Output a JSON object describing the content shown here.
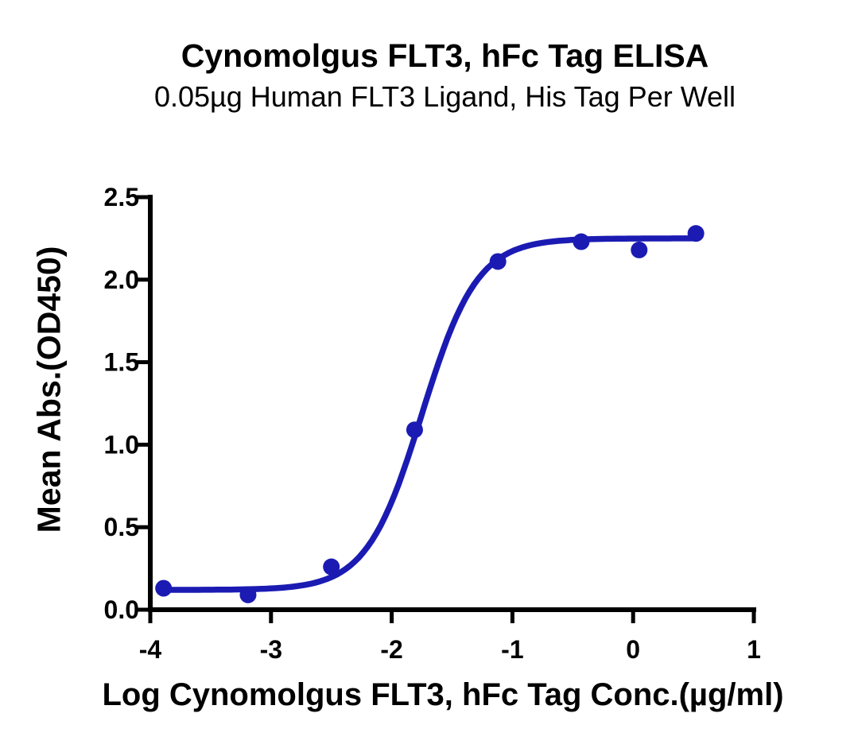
{
  "chart_data": {
    "type": "scatter",
    "title": "Cynomolgus FLT3, hFc Tag ELISA",
    "subtitle": "0.05µg Human FLT3 Ligand, His Tag Per Well",
    "xlabel": "Log Cynomolgus FLT3, hFc Tag Conc.(µg/ml)",
    "ylabel": "Mean Abs.(OD450)",
    "xlim": [
      -4,
      1
    ],
    "ylim": [
      0,
      2.5
    ],
    "x_ticks": [
      -4,
      -3,
      -2,
      -1,
      0,
      1
    ],
    "x_tick_labels": [
      "-4",
      "-3",
      "-2",
      "-1",
      "0",
      "1"
    ],
    "y_ticks": [
      0,
      0.5,
      1,
      1.5,
      2,
      2.5
    ],
    "y_tick_labels": [
      "0.0",
      "0.5",
      "1.0",
      "1.5",
      "2.0",
      "2.5"
    ],
    "grid": false,
    "legend": "none",
    "series": [
      {
        "name": "Cynomolgus FLT3, hFc Tag",
        "marker": "circle",
        "color": "#1b1bb3",
        "points": [
          {
            "x": -3.89,
            "y": 0.13
          },
          {
            "x": -3.19,
            "y": 0.09
          },
          {
            "x": -2.5,
            "y": 0.26
          },
          {
            "x": -1.81,
            "y": 1.09
          },
          {
            "x": -1.12,
            "y": 2.11
          },
          {
            "x": -0.43,
            "y": 2.23
          },
          {
            "x": 0.05,
            "y": 2.18
          },
          {
            "x": 0.52,
            "y": 2.28
          }
        ],
        "fit_curve": {
          "model": "4PL",
          "bottom": 0.12,
          "top": 2.25,
          "log_ec50": -1.75,
          "hill_slope": 1.9
        }
      }
    ],
    "colors": {
      "curve": "#1b1bb3",
      "axis": "#000000",
      "text": "#000000",
      "background": "#ffffff"
    }
  }
}
